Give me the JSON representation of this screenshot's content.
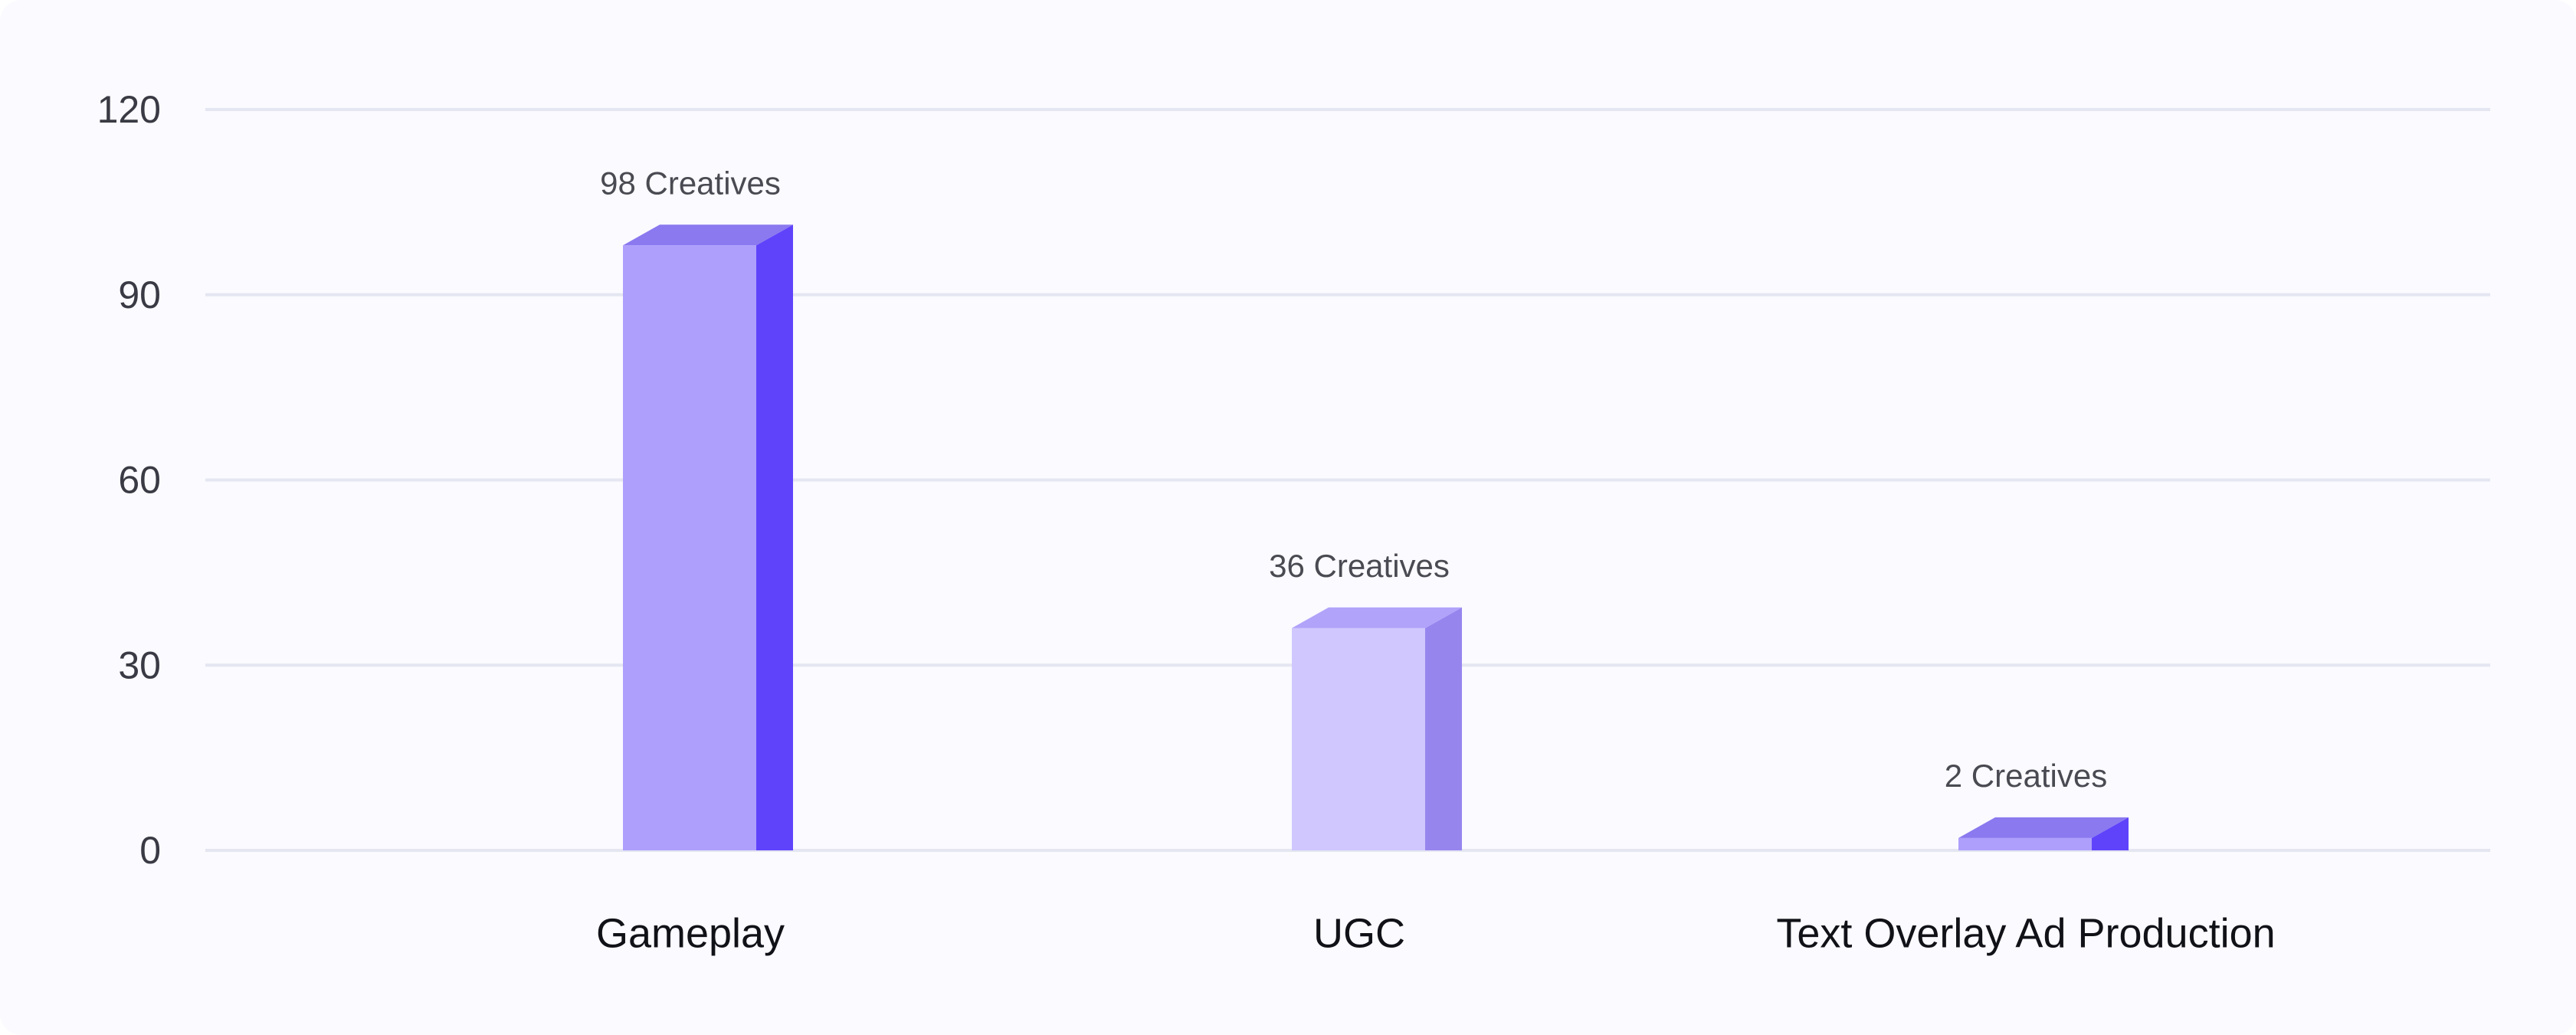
{
  "chart_data": {
    "type": "bar",
    "categories": [
      "Gameplay",
      "UGC",
      "Text Overlay Ad Production"
    ],
    "values": [
      98,
      36,
      2
    ],
    "data_labels": [
      "98 Creatives",
      "36 Creatives",
      "2 Creatives"
    ],
    "title": "",
    "xlabel": "",
    "ylabel": "",
    "ylim": [
      0,
      120
    ],
    "yticks": [
      0,
      30,
      60,
      90,
      120
    ],
    "ytick_labels": [
      "0",
      "30",
      "60",
      "90",
      "120"
    ],
    "grid": true,
    "legend": "none",
    "bar_style": "3d",
    "colors": [
      {
        "front": "#ae9ffc",
        "side": "#5f43fb",
        "top": "#8a79ef"
      },
      {
        "front": "#cfc7fe",
        "side": "#9785ee",
        "top": "#b1a3fa"
      },
      {
        "front": "#ae9ffc",
        "side": "#5f43fb",
        "top": "#8a79ef"
      }
    ],
    "background": "#fafaff",
    "gridline_color": "#e4e6f1"
  }
}
